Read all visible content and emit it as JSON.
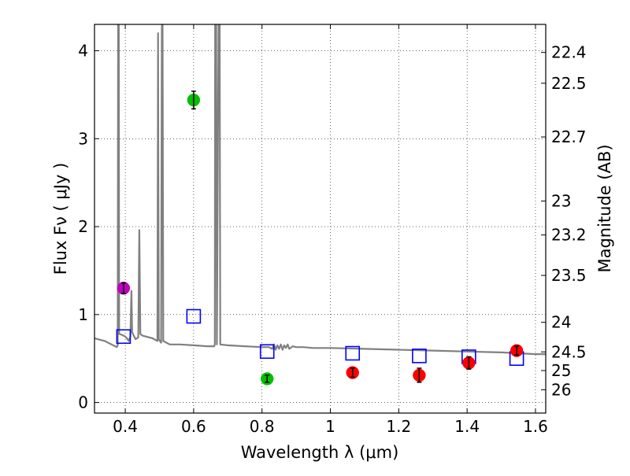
{
  "chart_data": {
    "type": "scatter",
    "xlabel": "Wavelength  λ (μm)",
    "ylabel": "Flux  Fν  ( μJy )",
    "ylabel_right": "Magnitude (AB)",
    "xlim": [
      0.31,
      1.63
    ],
    "ylim": [
      -0.12,
      4.3
    ],
    "grid": true,
    "x_ticks": [
      0.4,
      0.6,
      0.8,
      1.0,
      1.2,
      1.4,
      1.6
    ],
    "x_tick_labels": [
      "0.4",
      "0.6",
      "0.8",
      "1",
      "1.2",
      "1.4",
      "1.6"
    ],
    "y_ticks": [
      0,
      1,
      2,
      3,
      4
    ],
    "y_tick_labels": [
      "0",
      "1",
      "2",
      "3",
      "4"
    ],
    "right_ticks": [
      {
        "mag": 22.4,
        "label": "22.4"
      },
      {
        "mag": 22.5,
        "label": "22.5"
      },
      {
        "mag": 22.7,
        "label": "22.7"
      },
      {
        "mag": 23.0,
        "label": "23"
      },
      {
        "mag": 23.2,
        "label": "23.2"
      },
      {
        "mag": 23.5,
        "label": "23.5"
      },
      {
        "mag": 24.0,
        "label": "24"
      },
      {
        "mag": 24.5,
        "label": "24.5"
      },
      {
        "mag": 25.0,
        "label": "25"
      },
      {
        "mag": 26.0,
        "label": "26"
      }
    ],
    "observed_points": [
      {
        "x": 0.395,
        "y": 1.3,
        "err": 0.06,
        "color": "#bf00bf"
      },
      {
        "x": 0.6,
        "y": 3.44,
        "err": 0.1,
        "color": "#00c000"
      },
      {
        "x": 0.815,
        "y": 0.27,
        "err": 0.04,
        "color": "#00c000"
      },
      {
        "x": 1.065,
        "y": 0.34,
        "err": 0.05,
        "color": "#ff0000"
      },
      {
        "x": 1.26,
        "y": 0.31,
        "err": 0.08,
        "color": "#ff0000"
      },
      {
        "x": 1.405,
        "y": 0.45,
        "err": 0.07,
        "color": "#ff0000"
      },
      {
        "x": 1.545,
        "y": 0.59,
        "err": 0.05,
        "color": "#ff0000"
      }
    ],
    "model_points": [
      {
        "x": 0.395,
        "y": 0.75
      },
      {
        "x": 0.6,
        "y": 0.98
      },
      {
        "x": 0.815,
        "y": 0.58
      },
      {
        "x": 1.065,
        "y": 0.56
      },
      {
        "x": 1.26,
        "y": 0.53
      },
      {
        "x": 1.405,
        "y": 0.52
      },
      {
        "x": 1.545,
        "y": 0.5
      }
    ],
    "model_color": "#0000ff",
    "spectrum_color": "#808080",
    "spectrum": [
      [
        0.31,
        0.73
      ],
      [
        0.34,
        0.7
      ],
      [
        0.36,
        0.66
      ],
      [
        0.375,
        0.63
      ],
      [
        0.378,
        0.65
      ],
      [
        0.379,
        4.4
      ],
      [
        0.381,
        4.4
      ],
      [
        0.382,
        0.78
      ],
      [
        0.39,
        0.77
      ],
      [
        0.4,
        0.75
      ],
      [
        0.405,
        0.73
      ],
      [
        0.41,
        0.7
      ],
      [
        0.415,
        0.75
      ],
      [
        0.418,
        1.27
      ],
      [
        0.42,
        0.8
      ],
      [
        0.43,
        0.72
      ],
      [
        0.438,
        0.74
      ],
      [
        0.441,
        1.96
      ],
      [
        0.444,
        0.78
      ],
      [
        0.45,
        0.76
      ],
      [
        0.48,
        0.73
      ],
      [
        0.494,
        0.7
      ],
      [
        0.496,
        4.2
      ],
      [
        0.498,
        0.72
      ],
      [
        0.505,
        0.68
      ],
      [
        0.507,
        4.25
      ],
      [
        0.509,
        4.4
      ],
      [
        0.511,
        0.7
      ],
      [
        0.53,
        0.66
      ],
      [
        0.56,
        0.66
      ],
      [
        0.6,
        0.65
      ],
      [
        0.64,
        0.64
      ],
      [
        0.66,
        0.64
      ],
      [
        0.662,
        0.66
      ],
      [
        0.663,
        4.4
      ],
      [
        0.666,
        4.4
      ],
      [
        0.668,
        0.66
      ],
      [
        0.673,
        4.4
      ],
      [
        0.676,
        4.4
      ],
      [
        0.678,
        0.66
      ],
      [
        0.7,
        0.65
      ],
      [
        0.75,
        0.64
      ],
      [
        0.8,
        0.63
      ],
      [
        0.82,
        0.63
      ],
      [
        0.83,
        0.61
      ],
      [
        0.835,
        0.66
      ],
      [
        0.84,
        0.6
      ],
      [
        0.845,
        0.65
      ],
      [
        0.85,
        0.61
      ],
      [
        0.855,
        0.66
      ],
      [
        0.86,
        0.6
      ],
      [
        0.865,
        0.65
      ],
      [
        0.87,
        0.62
      ],
      [
        0.875,
        0.66
      ],
      [
        0.88,
        0.61
      ],
      [
        0.89,
        0.64
      ],
      [
        0.9,
        0.63
      ],
      [
        0.92,
        0.63
      ],
      [
        0.95,
        0.62
      ],
      [
        1.0,
        0.62
      ],
      [
        1.1,
        0.61
      ],
      [
        1.2,
        0.6
      ],
      [
        1.3,
        0.59
      ],
      [
        1.4,
        0.58
      ],
      [
        1.5,
        0.57
      ],
      [
        1.6,
        0.55
      ],
      [
        1.63,
        0.55
      ]
    ]
  }
}
